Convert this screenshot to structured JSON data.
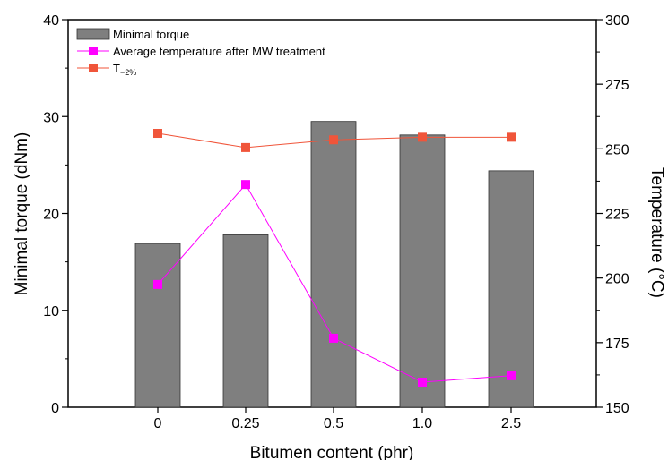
{
  "chart_data": {
    "type": "bar",
    "categories": [
      "0",
      "0.25",
      "0.5",
      "1.0",
      "2.5"
    ],
    "xlabel": "Bitumen content (phr)",
    "ylabel": "Minimal torque (dNm)",
    "y2label": "Temperature (°C)",
    "ylim": [
      0,
      40
    ],
    "y2lim": [
      150,
      300
    ],
    "yticks": [
      "0",
      "10",
      "20",
      "30",
      "40"
    ],
    "y2ticks": [
      "150",
      "175",
      "200",
      "225",
      "250",
      "275",
      "300"
    ],
    "grid": false,
    "legend_position": "top-left",
    "series": [
      {
        "name": "Minimal torque",
        "type": "bar",
        "axis": "left",
        "color": "#7f7f7f",
        "values": [
          16.9,
          17.8,
          29.5,
          28.1,
          24.4
        ]
      },
      {
        "name": "Average temperature after MW treatment",
        "type": "line",
        "axis": "right",
        "color": "#ff00ff",
        "values": [
          197.5,
          236.2,
          176.7,
          159.7,
          162.2
        ]
      },
      {
        "name_main": "T",
        "name_sub": "−2%",
        "type": "line",
        "axis": "right",
        "color": "#f0553a",
        "values": [
          256.0,
          250.5,
          253.5,
          254.5,
          254.5
        ]
      }
    ]
  }
}
